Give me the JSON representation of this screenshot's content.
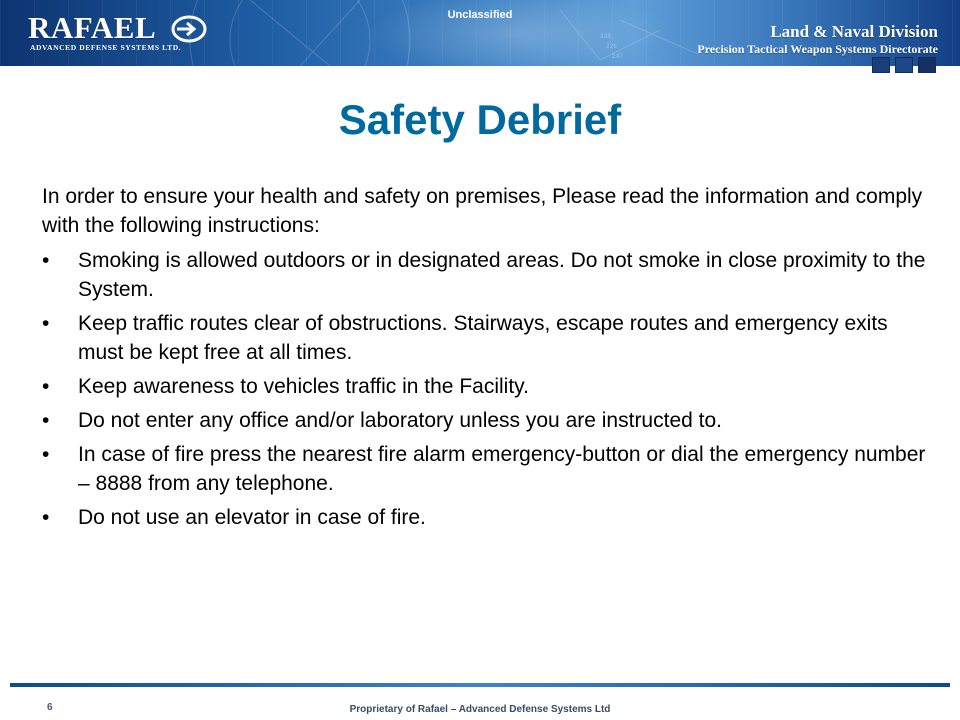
{
  "header": {
    "classification": "Unclassified",
    "logo_text": "RAFAEL",
    "logo_subtext": "ADVANCED DEFENSE SYSTEMS LTD.",
    "division": "Land & Naval Division",
    "directorate": "Precision Tactical Weapon Systems Directorate"
  },
  "slide": {
    "title": "Safety Debrief",
    "intro": "In order to ensure your health and safety on premises, Please read the information and comply with the following instructions:",
    "bullet_symbol": "•",
    "bullets": [
      "Smoking is allowed outdoors or in designated areas. Do not smoke in close proximity to the System.",
      "Keep traffic routes clear of obstructions. Stairways, escape routes and emergency exits must be kept free at all times.",
      "Keep awareness to vehicles traffic in the Facility.",
      "Do not enter any office and/or laboratory unless you are instructed to.",
      "In case of fire press the nearest fire alarm emergency-button or dial the emergency number – 8888 from any telephone.",
      "Do not use an elevator in case of fire."
    ]
  },
  "footer": {
    "page_number": "6",
    "proprietary": "Proprietary of Rafael – Advanced Defense Systems Ltd"
  },
  "colors": {
    "title": "#006a9e",
    "banner_dark": "#0d3470",
    "banner_light": "#5f9ed8"
  }
}
